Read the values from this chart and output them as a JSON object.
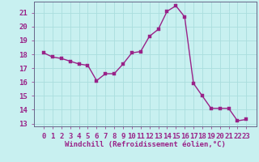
{
  "x": [
    0,
    1,
    2,
    3,
    4,
    5,
    6,
    7,
    8,
    9,
    10,
    11,
    12,
    13,
    14,
    15,
    16,
    17,
    18,
    19,
    20,
    21,
    22,
    23
  ],
  "y": [
    18.1,
    17.8,
    17.7,
    17.5,
    17.3,
    17.2,
    16.1,
    16.6,
    16.6,
    17.3,
    18.1,
    18.2,
    19.3,
    19.8,
    21.1,
    21.5,
    20.7,
    15.9,
    15.0,
    14.1,
    14.1,
    14.1,
    13.2,
    13.3
  ],
  "line_color": "#992288",
  "marker": "s",
  "marker_size": 2.2,
  "linewidth": 1.0,
  "bg_color": "#c8f0f0",
  "grid_color": "#aadddd",
  "xlabel": "Windchill (Refroidissement éolien,°C)",
  "xlabel_fontsize": 6.5,
  "tick_fontsize": 6.5,
  "ylim": [
    12.8,
    21.8
  ],
  "yticks": [
    13,
    14,
    15,
    16,
    17,
    18,
    19,
    20,
    21
  ],
  "xticks": [
    0,
    1,
    2,
    3,
    4,
    5,
    6,
    7,
    8,
    9,
    10,
    11,
    12,
    13,
    14,
    15,
    16,
    17,
    18,
    19,
    20,
    21,
    22,
    23
  ],
  "xtick_labels": [
    "0",
    "1",
    "2",
    "3",
    "4",
    "5",
    "6",
    "7",
    "8",
    "9",
    "10",
    "11",
    "12",
    "13",
    "14",
    "15",
    "16",
    "17",
    "18",
    "19",
    "20",
    "21",
    "22",
    "23"
  ]
}
